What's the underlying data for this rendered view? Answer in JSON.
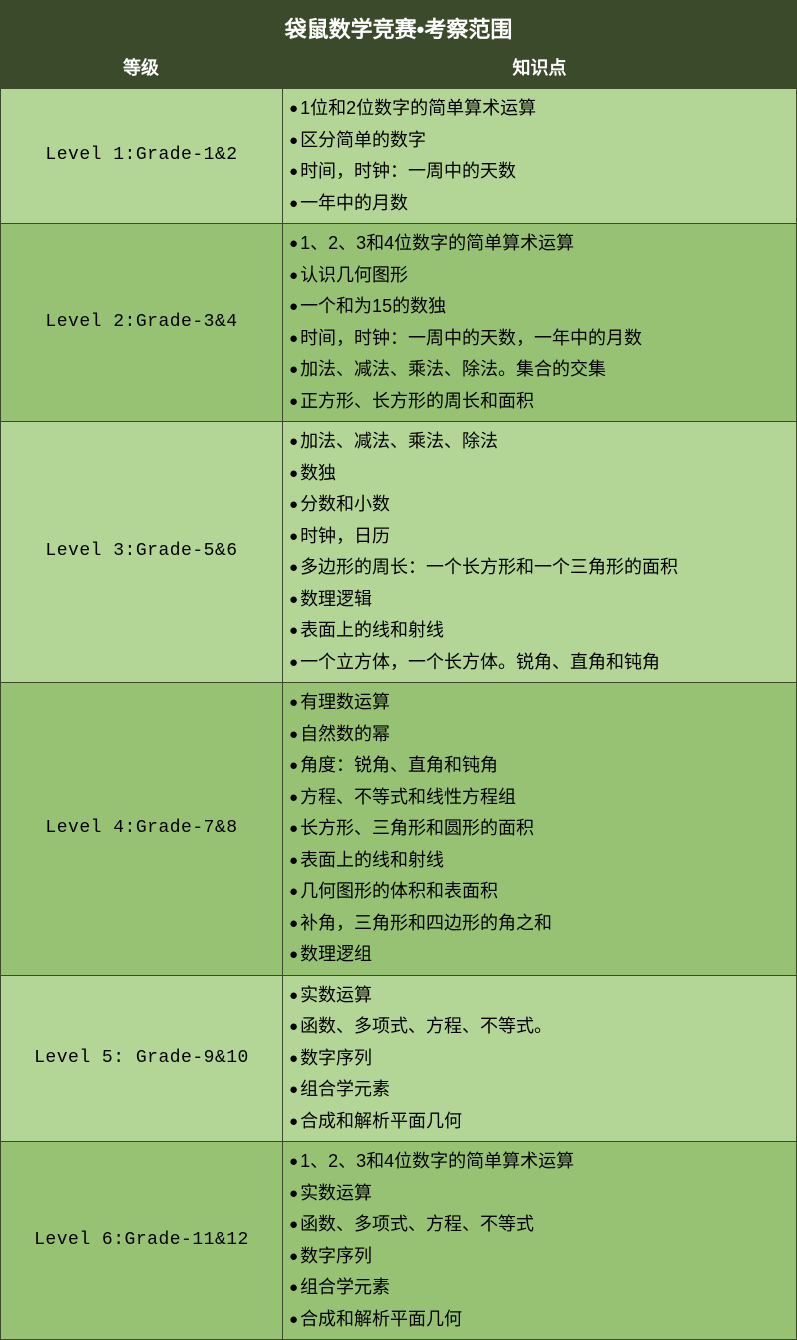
{
  "title": "袋鼠数学竞赛•考察范围",
  "columns": {
    "level": "等级",
    "points": "知识点"
  },
  "colors": {
    "header_bg": "#3b4a2a",
    "header_text": "#ffffff",
    "row_light": "#b3d595",
    "row_dark": "#97c274",
    "border": "#3b4a2a",
    "text": "#000000"
  },
  "rows": [
    {
      "shade": "light",
      "level": "Level 1:Grade-1&2",
      "points": [
        "1位和2位数字的简单算术运算",
        "区分简单的数字",
        "时间，时钟：一周中的天数",
        "一年中的月数"
      ]
    },
    {
      "shade": "dark",
      "level": "Level 2:Grade-3&4",
      "points": [
        "1、2、3和4位数字的简单算术运算",
        "认识几何图形",
        "一个和为15的数独",
        "时间，时钟：一周中的天数，一年中的月数",
        "加法、减法、乘法、除法。集合的交集",
        "正方形、长方形的周长和面积"
      ]
    },
    {
      "shade": "light",
      "level": "Level 3:Grade-5&6",
      "points": [
        "加法、减法、乘法、除法",
        "数独",
        "分数和小数",
        "时钟，日历",
        "多边形的周长：一个长方形和一个三角形的面积",
        "数理逻辑",
        "表面上的线和射线",
        "一个立方体，一个长方体。锐角、直角和钝角"
      ]
    },
    {
      "shade": "dark",
      "level": "Level 4:Grade-7&8",
      "points": [
        "有理数运算",
        "自然数的幂",
        "角度：锐角、直角和钝角",
        "方程、不等式和线性方程组",
        "长方形、三角形和圆形的面积",
        "表面上的线和射线",
        "几何图形的体积和表面积",
        "补角，三角形和四边形的角之和",
        "数理逻组"
      ]
    },
    {
      "shade": "light",
      "level": "Level 5: Grade-9&10",
      "points": [
        "实数运算",
        "函数、多项式、方程、不等式。",
        "数字序列",
        "组合学元素",
        "合成和解析平面几何"
      ]
    },
    {
      "shade": "dark",
      "level": "Level 6:Grade-11&12",
      "points": [
        "1、2、3和4位数字的简单算术运算",
        "实数运算",
        "函数、多项式、方程、不等式",
        "数字序列",
        "组合学元素",
        "合成和解析平面几何"
      ]
    }
  ]
}
